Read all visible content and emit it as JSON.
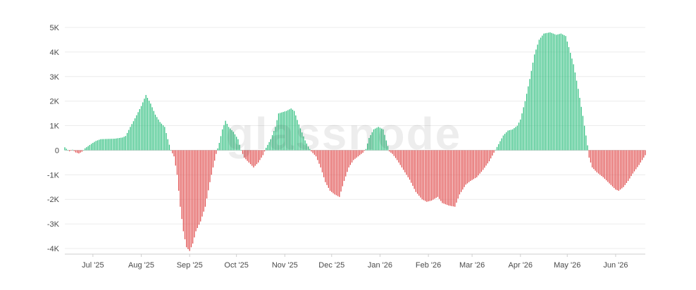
{
  "watermark": "glassnode",
  "chart_data": {
    "type": "bar",
    "title": "",
    "xlabel": "",
    "ylabel": "",
    "ylim": [
      -4200,
      5200
    ],
    "yticks": [
      -4000,
      -3000,
      -2000,
      -1000,
      0,
      1000,
      2000,
      3000,
      4000,
      5000
    ],
    "ytick_labels": [
      "-4K",
      "-3K",
      "-2K",
      "-1K",
      "0",
      "1K",
      "2K",
      "3K",
      "4K",
      "5K"
    ],
    "xlim": [
      "2025-06-13",
      "2026-06-20"
    ],
    "xticks": [
      "2025-07-01",
      "2025-08-01",
      "2025-09-01",
      "2025-10-01",
      "2025-11-01",
      "2025-12-01",
      "2026-01-01",
      "2026-02-01",
      "2026-03-01",
      "2026-04-01",
      "2026-05-01",
      "2026-06-01"
    ],
    "xtick_labels": [
      "Jul '25",
      "Aug '25",
      "Sep '25",
      "Oct '25",
      "Nov '25",
      "Dec '25",
      "Jan '26",
      "Feb '26",
      "Mar '26",
      "Apr '26",
      "May '26",
      "Jun '26"
    ],
    "grid": true,
    "legend": "none",
    "colors": {
      "positive": "#2fbf7f",
      "negative": "#e04b4b"
    },
    "frequency": "daily",
    "series_keypoints": [
      [
        "2025-06-13",
        120
      ],
      [
        "2025-06-14",
        60
      ],
      [
        "2025-06-16",
        -40
      ],
      [
        "2025-06-18",
        20
      ],
      [
        "2025-06-20",
        -90
      ],
      [
        "2025-06-22",
        -130
      ],
      [
        "2025-06-24",
        -60
      ],
      [
        "2025-06-26",
        80
      ],
      [
        "2025-06-30",
        260
      ],
      [
        "2025-07-03",
        380
      ],
      [
        "2025-07-06",
        450
      ],
      [
        "2025-07-10",
        460
      ],
      [
        "2025-07-15",
        470
      ],
      [
        "2025-07-20",
        520
      ],
      [
        "2025-07-22",
        580
      ],
      [
        "2025-07-25",
        950
      ],
      [
        "2025-07-28",
        1300
      ],
      [
        "2025-08-01",
        1800
      ],
      [
        "2025-08-04",
        2250
      ],
      [
        "2025-08-07",
        1900
      ],
      [
        "2025-08-10",
        1450
      ],
      [
        "2025-08-13",
        1150
      ],
      [
        "2025-08-16",
        950
      ],
      [
        "2025-08-18",
        450
      ],
      [
        "2025-08-20",
        0
      ],
      [
        "2025-08-22",
        -250
      ],
      [
        "2025-08-24",
        -1000
      ],
      [
        "2025-08-26",
        -2300
      ],
      [
        "2025-08-28",
        -3300
      ],
      [
        "2025-08-30",
        -3950
      ],
      [
        "2025-09-01",
        -4100
      ],
      [
        "2025-09-03",
        -3800
      ],
      [
        "2025-09-05",
        -3300
      ],
      [
        "2025-09-08",
        -2900
      ],
      [
        "2025-09-11",
        -2300
      ],
      [
        "2025-09-14",
        -1300
      ],
      [
        "2025-09-16",
        -700
      ],
      [
        "2025-09-18",
        -150
      ],
      [
        "2025-09-20",
        300
      ],
      [
        "2025-09-22",
        850
      ],
      [
        "2025-09-24",
        1200
      ],
      [
        "2025-09-26",
        950
      ],
      [
        "2025-09-29",
        750
      ],
      [
        "2025-10-02",
        450
      ],
      [
        "2025-10-04",
        0
      ],
      [
        "2025-10-06",
        -300
      ],
      [
        "2025-10-09",
        -500
      ],
      [
        "2025-10-12",
        -700
      ],
      [
        "2025-10-15",
        -500
      ],
      [
        "2025-10-18",
        -200
      ],
      [
        "2025-10-20",
        100
      ],
      [
        "2025-10-23",
        450
      ],
      [
        "2025-10-26",
        950
      ],
      [
        "2025-10-28",
        1500
      ],
      [
        "2025-11-02",
        1600
      ],
      [
        "2025-11-05",
        1700
      ],
      [
        "2025-11-07",
        1600
      ],
      [
        "2025-11-10",
        1050
      ],
      [
        "2025-11-14",
        400
      ],
      [
        "2025-11-16",
        150
      ],
      [
        "2025-11-18",
        -50
      ],
      [
        "2025-11-21",
        -250
      ],
      [
        "2025-11-24",
        -700
      ],
      [
        "2025-11-27",
        -1300
      ],
      [
        "2025-11-30",
        -1650
      ],
      [
        "2025-12-03",
        -1800
      ],
      [
        "2025-12-06",
        -1900
      ],
      [
        "2025-12-09",
        -1250
      ],
      [
        "2025-12-12",
        -700
      ],
      [
        "2025-12-15",
        -400
      ],
      [
        "2025-12-18",
        -250
      ],
      [
        "2025-12-21",
        -100
      ],
      [
        "2025-12-23",
        50
      ],
      [
        "2025-12-25",
        500
      ],
      [
        "2025-12-28",
        850
      ],
      [
        "2025-12-31",
        950
      ],
      [
        "2026-01-03",
        850
      ],
      [
        "2026-01-05",
        400
      ],
      [
        "2026-01-07",
        -50
      ],
      [
        "2026-01-09",
        -150
      ],
      [
        "2026-01-12",
        -400
      ],
      [
        "2026-01-16",
        -800
      ],
      [
        "2026-01-20",
        -1200
      ],
      [
        "2026-01-24",
        -1700
      ],
      [
        "2026-01-28",
        -2000
      ],
      [
        "2026-01-31",
        -2100
      ],
      [
        "2026-02-03",
        -2050
      ],
      [
        "2026-02-07",
        -1900
      ],
      [
        "2026-02-10",
        -2150
      ],
      [
        "2026-02-14",
        -2250
      ],
      [
        "2026-02-18",
        -2300
      ],
      [
        "2026-02-21",
        -1800
      ],
      [
        "2026-02-25",
        -1400
      ],
      [
        "2026-02-28",
        -1250
      ],
      [
        "2026-03-04",
        -1100
      ],
      [
        "2026-03-08",
        -800
      ],
      [
        "2026-03-12",
        -450
      ],
      [
        "2026-03-15",
        -100
      ],
      [
        "2026-03-18",
        250
      ],
      [
        "2026-03-21",
        600
      ],
      [
        "2026-03-24",
        800
      ],
      [
        "2026-03-27",
        850
      ],
      [
        "2026-03-30",
        1000
      ],
      [
        "2026-04-01",
        1250
      ],
      [
        "2026-04-04",
        2000
      ],
      [
        "2026-04-07",
        2900
      ],
      [
        "2026-04-10",
        3900
      ],
      [
        "2026-04-13",
        4500
      ],
      [
        "2026-04-16",
        4750
      ],
      [
        "2026-04-20",
        4800
      ],
      [
        "2026-04-24",
        4700
      ],
      [
        "2026-04-27",
        4750
      ],
      [
        "2026-04-30",
        4650
      ],
      [
        "2026-05-02",
        4200
      ],
      [
        "2026-05-05",
        3500
      ],
      [
        "2026-05-08",
        2500
      ],
      [
        "2026-05-11",
        1400
      ],
      [
        "2026-05-14",
        200
      ],
      [
        "2026-05-15",
        -300
      ],
      [
        "2026-05-17",
        -700
      ],
      [
        "2026-05-20",
        -900
      ],
      [
        "2026-05-24",
        -1100
      ],
      [
        "2026-05-28",
        -1350
      ],
      [
        "2026-06-01",
        -1600
      ],
      [
        "2026-06-03",
        -1650
      ],
      [
        "2026-06-06",
        -1500
      ],
      [
        "2026-06-09",
        -1250
      ],
      [
        "2026-06-12",
        -950
      ],
      [
        "2026-06-16",
        -600
      ],
      [
        "2026-06-20",
        -200
      ]
    ]
  }
}
